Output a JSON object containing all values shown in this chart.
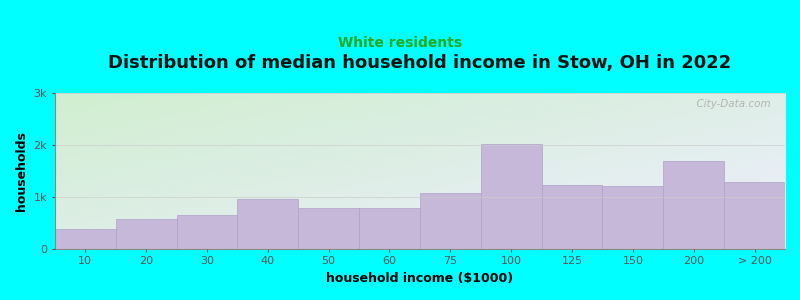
{
  "title": "Distribution of median household income in Stow, OH in 2022",
  "subtitle": "White residents",
  "xlabel": "household income ($1000)",
  "ylabel": "households",
  "background_color": "#00FFFF",
  "plot_bg_gradient_top_left": "#d0eed0",
  "plot_bg_gradient_bottom_right": "#eeeeff",
  "bar_color": "#c5b8d8",
  "bar_edge_color": "#b0a0c8",
  "categories": [
    "10",
    "20",
    "30",
    "40",
    "50",
    "60",
    "75",
    "100",
    "125",
    "150",
    "200",
    "> 200"
  ],
  "values": [
    380,
    580,
    650,
    950,
    780,
    780,
    1080,
    2020,
    1220,
    1200,
    1700,
    1280
  ],
  "ylim": [
    0,
    3000
  ],
  "yticks": [
    0,
    1000,
    2000,
    3000
  ],
  "ytick_labels": [
    "0",
    "1k",
    "2k",
    "3k"
  ],
  "title_fontsize": 13,
  "subtitle_fontsize": 10,
  "subtitle_color": "#22aa22",
  "axis_label_fontsize": 9,
  "tick_fontsize": 8,
  "watermark_text": "  City-Data.com",
  "watermark_color": "#aaaaaa"
}
